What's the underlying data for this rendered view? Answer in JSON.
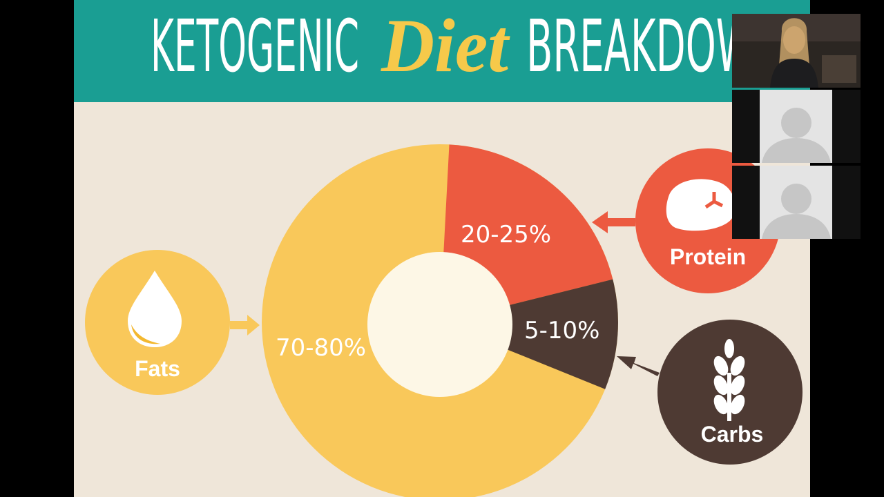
{
  "slide": {
    "title": {
      "lead": "KETOGENIC",
      "accent": "Diet",
      "tail": "BREAKDOWN"
    },
    "segments": [
      {
        "name": "Fats",
        "share": "70-80%"
      },
      {
        "name": "Protein",
        "share": "20-25%"
      },
      {
        "name": "Carbs",
        "share": "5-10%"
      }
    ]
  }
}
